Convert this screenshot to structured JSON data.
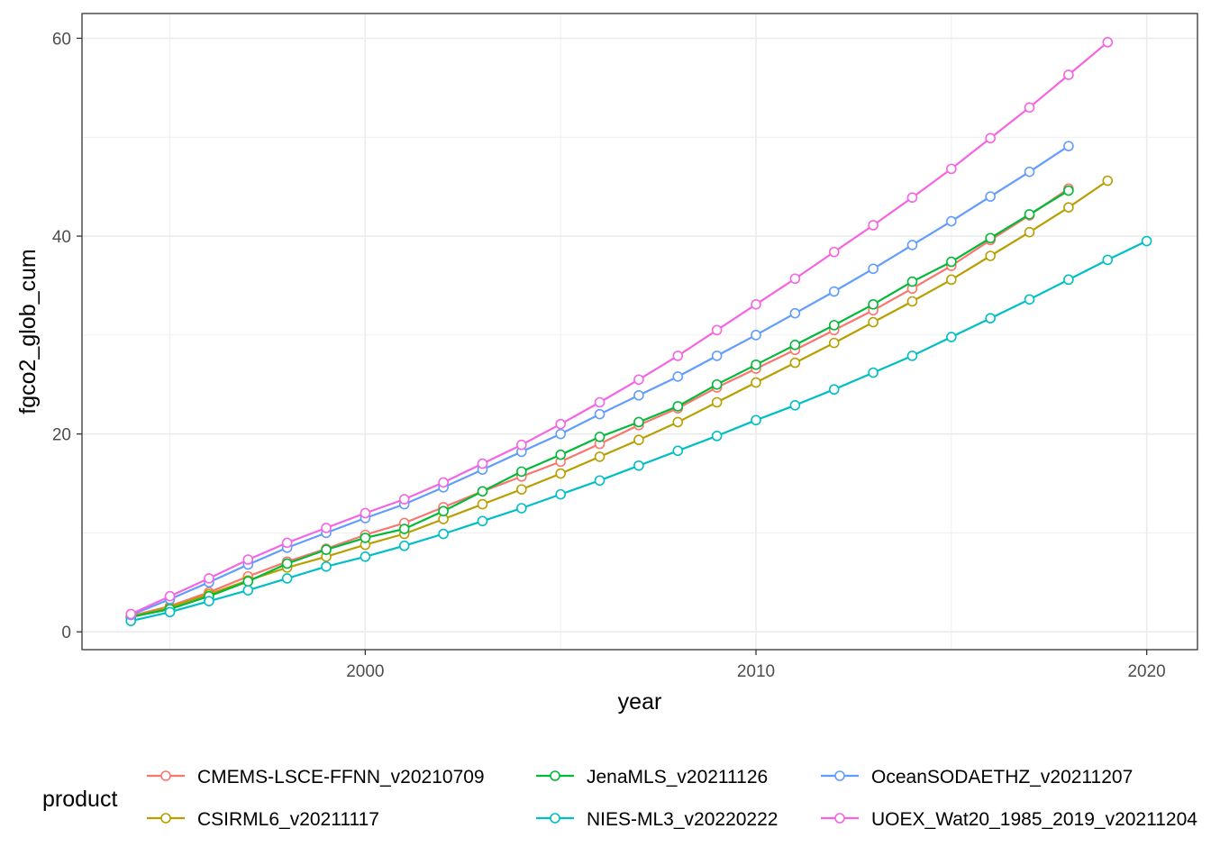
{
  "chart_data": {
    "type": "line",
    "xlabel": "year",
    "ylabel": "fgco2_glob_cum",
    "xlim": [
      1992.75,
      2021.3
    ],
    "ylim": [
      -1.8,
      62.5
    ],
    "x_ticks": [
      2000,
      2010,
      2020
    ],
    "x_tick_labels": [
      "2000",
      "2010",
      "2020"
    ],
    "y_ticks": [
      0,
      20,
      40,
      60
    ],
    "y_tick_labels": [
      "0",
      "20",
      "40",
      "60"
    ],
    "grid": true,
    "legend_title": "product",
    "legend_position": "bottom",
    "series": [
      {
        "name": "CMEMS-LSCE-FFNN_v20210709",
        "color": "#F8766D",
        "x": [
          1994,
          1995,
          1996,
          1997,
          1998,
          1999,
          2000,
          2001,
          2002,
          2003,
          2004,
          2005,
          2006,
          2007,
          2008,
          2009,
          2010,
          2011,
          2012,
          2013,
          2014,
          2015,
          2016,
          2017,
          2018
        ],
        "y": [
          1.6,
          2.6,
          4.0,
          5.6,
          7.1,
          8.4,
          9.8,
          11.0,
          12.6,
          14.2,
          15.7,
          17.2,
          19.0,
          20.9,
          22.6,
          24.7,
          26.6,
          28.5,
          30.5,
          32.5,
          34.7,
          37.0,
          39.6,
          42.1,
          44.8
        ]
      },
      {
        "name": "CSIRML6_v20211117",
        "color": "#B79F00",
        "x": [
          1994,
          1995,
          1996,
          1997,
          1998,
          1999,
          2000,
          2001,
          2002,
          2003,
          2004,
          2005,
          2006,
          2007,
          2008,
          2009,
          2010,
          2011,
          2012,
          2013,
          2014,
          2015,
          2016,
          2017,
          2018,
          2019
        ],
        "y": [
          1.5,
          2.5,
          3.8,
          5.2,
          6.5,
          7.6,
          8.8,
          9.9,
          11.4,
          12.9,
          14.4,
          16.0,
          17.7,
          19.4,
          21.2,
          23.2,
          25.2,
          27.2,
          29.2,
          31.3,
          33.4,
          35.6,
          38.0,
          40.4,
          42.9,
          45.6
        ]
      },
      {
        "name": "JenaMLS_v20211126",
        "color": "#00BA38",
        "x": [
          1994,
          1995,
          1996,
          1997,
          1998,
          1999,
          2000,
          2001,
          2002,
          2003,
          2004,
          2005,
          2006,
          2007,
          2008,
          2009,
          2010,
          2011,
          2012,
          2013,
          2014,
          2015,
          2016,
          2017,
          2018
        ],
        "y": [
          1.5,
          2.3,
          3.6,
          5.1,
          6.9,
          8.3,
          9.5,
          10.4,
          12.2,
          14.2,
          16.2,
          17.9,
          19.7,
          21.2,
          22.8,
          25.0,
          27.0,
          29.0,
          31.0,
          33.1,
          35.4,
          37.4,
          39.8,
          42.2,
          44.6
        ]
      },
      {
        "name": "NIES-ML3_v20220222",
        "color": "#00BFC4",
        "x": [
          1994,
          1995,
          1996,
          1997,
          1998,
          1999,
          2000,
          2001,
          2002,
          2003,
          2004,
          2005,
          2006,
          2007,
          2008,
          2009,
          2010,
          2011,
          2012,
          2013,
          2014,
          2015,
          2016,
          2017,
          2018,
          2019,
          2020
        ],
        "y": [
          1.1,
          2.0,
          3.1,
          4.2,
          5.4,
          6.6,
          7.6,
          8.7,
          9.9,
          11.2,
          12.5,
          13.9,
          15.3,
          16.8,
          18.3,
          19.8,
          21.4,
          22.9,
          24.5,
          26.2,
          27.9,
          29.8,
          31.7,
          33.6,
          35.6,
          37.6,
          39.5
        ]
      },
      {
        "name": "OceanSODAETHZ_v20211207",
        "color": "#619CFF",
        "x": [
          1994,
          1995,
          1996,
          1997,
          1998,
          1999,
          2000,
          2001,
          2002,
          2003,
          2004,
          2005,
          2006,
          2007,
          2008,
          2009,
          2010,
          2011,
          2012,
          2013,
          2014,
          2015,
          2016,
          2017,
          2018
        ],
        "y": [
          1.7,
          3.3,
          5.0,
          6.8,
          8.5,
          10.0,
          11.5,
          12.9,
          14.6,
          16.4,
          18.2,
          20.0,
          22.0,
          23.9,
          25.8,
          27.9,
          30.0,
          32.2,
          34.4,
          36.7,
          39.1,
          41.5,
          44.0,
          46.5,
          49.1
        ]
      },
      {
        "name": "UOEX_Wat20_1985_2019_v20211204",
        "color": "#F564E3",
        "x": [
          1994,
          1995,
          1996,
          1997,
          1998,
          1999,
          2000,
          2001,
          2002,
          2003,
          2004,
          2005,
          2006,
          2007,
          2008,
          2009,
          2010,
          2011,
          2012,
          2013,
          2014,
          2015,
          2016,
          2017,
          2018,
          2019
        ],
        "y": [
          1.8,
          3.6,
          5.4,
          7.3,
          9.0,
          10.5,
          12.0,
          13.4,
          15.1,
          17.0,
          18.9,
          21.0,
          23.2,
          25.5,
          27.9,
          30.5,
          33.1,
          35.7,
          38.4,
          41.1,
          43.9,
          46.8,
          49.9,
          53.0,
          56.3,
          59.6
        ]
      }
    ]
  }
}
